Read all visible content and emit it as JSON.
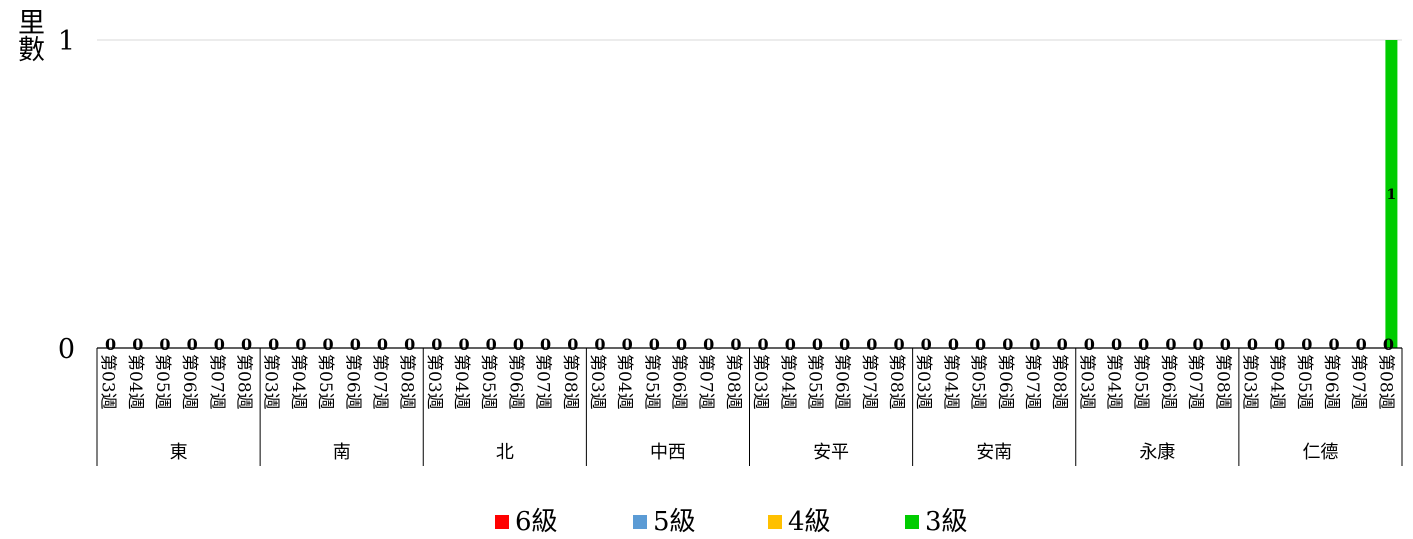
{
  "chart_data": {
    "type": "bar",
    "ylabel": "里數",
    "ylim": [
      0,
      1
    ],
    "yticks": [
      "0",
      "1"
    ],
    "groups": [
      {
        "name": "東",
        "weeks": [
          "第03週",
          "第04週",
          "第05週",
          "第06週",
          "第07週",
          "第08週"
        ],
        "values": [
          0,
          0,
          0,
          0,
          0,
          0
        ]
      },
      {
        "name": "南",
        "weeks": [
          "第03週",
          "第04週",
          "第05週",
          "第06週",
          "第07週",
          "第08週"
        ],
        "values": [
          0,
          0,
          0,
          0,
          0,
          0
        ]
      },
      {
        "name": "北",
        "weeks": [
          "第03週",
          "第04週",
          "第05週",
          "第06週",
          "第07週",
          "第08週"
        ],
        "values": [
          0,
          0,
          0,
          0,
          0,
          0
        ]
      },
      {
        "name": "中西",
        "weeks": [
          "第03週",
          "第04週",
          "第05週",
          "第06週",
          "第07週",
          "第08週"
        ],
        "values": [
          0,
          0,
          0,
          0,
          0,
          0
        ]
      },
      {
        "name": "安平",
        "weeks": [
          "第03週",
          "第04週",
          "第05週",
          "第06週",
          "第07週",
          "第08週"
        ],
        "values": [
          0,
          0,
          0,
          0,
          0,
          0
        ]
      },
      {
        "name": "安南",
        "weeks": [
          "第03週",
          "第04週",
          "第05週",
          "第06週",
          "第07週",
          "第08週"
        ],
        "values": [
          0,
          0,
          0,
          0,
          0,
          0
        ]
      },
      {
        "name": "永康",
        "weeks": [
          "第03週",
          "第04週",
          "第05週",
          "第06週",
          "第07週",
          "第08週"
        ],
        "values": [
          0,
          0,
          0,
          0,
          0,
          0
        ]
      },
      {
        "name": "仁德",
        "weeks": [
          "第03週",
          "第04週",
          "第05週",
          "第06週",
          "第07週",
          "第08週"
        ],
        "values": [
          0,
          0,
          0,
          0,
          0,
          1
        ]
      }
    ],
    "series": [
      {
        "name": "6級",
        "color": "#ff0000"
      },
      {
        "name": "5級",
        "color": "#5b9bd5"
      },
      {
        "name": "4級",
        "color": "#ffc000"
      },
      {
        "name": "3級",
        "color": "#00cc00"
      }
    ],
    "bar_series": "3級",
    "legend_position": "bottom",
    "grid": true
  }
}
